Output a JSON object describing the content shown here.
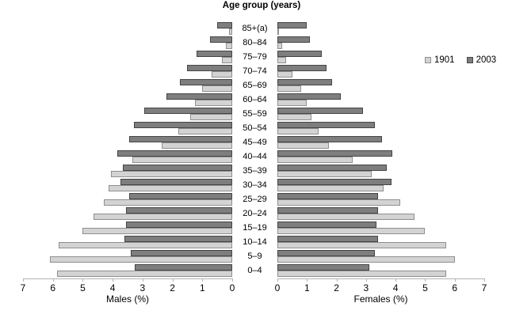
{
  "chart_data": {
    "type": "bar",
    "subtype": "population-pyramid",
    "title": "Age group (years)",
    "xlabel_left": "Males (%)",
    "xlabel_right": "Females (%)",
    "xlim": [
      0,
      7
    ],
    "ticks_left": [
      "7",
      "6",
      "5",
      "4",
      "3",
      "2",
      "1",
      "0"
    ],
    "ticks_right": [
      "0",
      "1",
      "2",
      "3",
      "4",
      "5",
      "6",
      "7"
    ],
    "grid": false,
    "legend_position": "right",
    "age_groups": [
      "85+(a)",
      "80–84",
      "75–79",
      "70–74",
      "65–69",
      "60–64",
      "55–59",
      "50–54",
      "45–49",
      "40–44",
      "35–39",
      "30–34",
      "25–29",
      "20–24",
      "15–19",
      "10–14",
      "5–9",
      "0–4"
    ],
    "legend": [
      {
        "label": "1901",
        "color": "#d3d3d3",
        "border": "#8f8f8f"
      },
      {
        "label": "2003",
        "color": "#7e7e7e",
        "border": "#454545"
      }
    ],
    "series": [
      {
        "name": "1901",
        "males": [
          0.1,
          0.2,
          0.35,
          0.7,
          1.0,
          1.25,
          1.4,
          1.8,
          2.35,
          3.35,
          4.05,
          4.15,
          4.3,
          4.65,
          5.0,
          5.8,
          6.1,
          5.85
        ],
        "females": [
          0.05,
          0.15,
          0.3,
          0.5,
          0.8,
          1.0,
          1.15,
          1.4,
          1.75,
          2.55,
          3.2,
          3.6,
          4.15,
          4.65,
          5.0,
          5.7,
          6.0,
          5.7
        ]
      },
      {
        "name": "2003",
        "males": [
          0.5,
          0.75,
          1.2,
          1.5,
          1.75,
          2.2,
          2.95,
          3.3,
          3.45,
          3.85,
          3.65,
          3.75,
          3.45,
          3.55,
          3.55,
          3.6,
          3.4,
          3.25
        ],
        "females": [
          1.0,
          1.1,
          1.5,
          1.65,
          1.85,
          2.15,
          2.9,
          3.3,
          3.55,
          3.9,
          3.7,
          3.85,
          3.4,
          3.4,
          3.35,
          3.4,
          3.3,
          3.1
        ]
      }
    ]
  }
}
